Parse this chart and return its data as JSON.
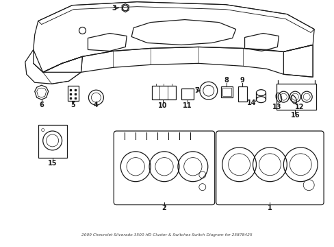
{
  "title": "2009 Chevrolet Silverado 3500 HD Cluster & Switches Switch Diagram for 25878425",
  "bg_color": "#ffffff",
  "line_color": "#1a1a1a",
  "fig_width": 4.89,
  "fig_height": 3.6,
  "dpi": 100
}
